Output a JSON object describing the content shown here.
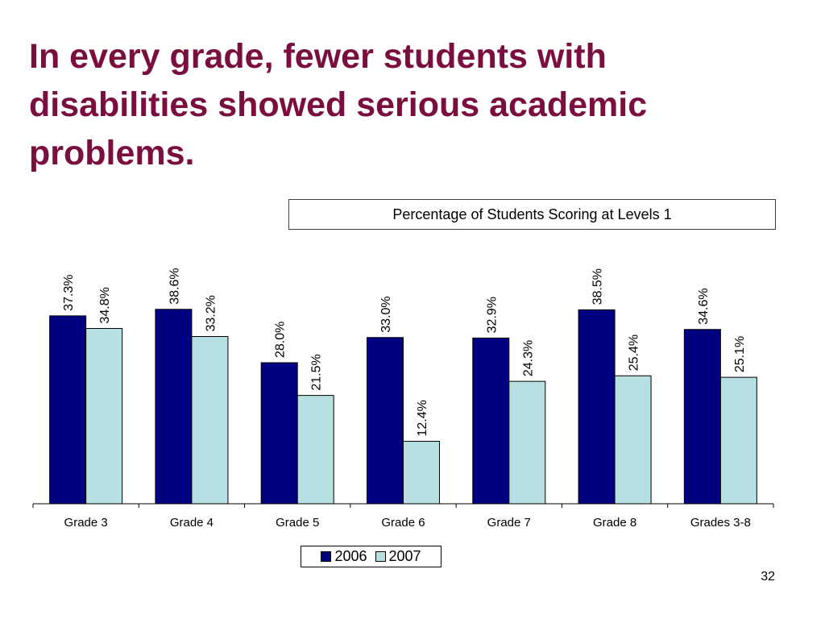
{
  "slide": {
    "title": "In every grade, fewer students with disabilities showed serious academic problems.",
    "page_number": "32"
  },
  "colors": {
    "title": "#7a0e3e",
    "series_2006": "#000080",
    "series_2007": "#b7e0e3"
  },
  "chart_data": {
    "type": "bar",
    "title": "Percentage of Students Scoring at Levels 1",
    "categories": [
      "Grade 3",
      "Grade 4",
      "Grade 5",
      "Grade 6",
      "Grade 7",
      "Grade 8",
      "Grades 3-8"
    ],
    "series": [
      {
        "name": "2006",
        "values": [
          37.3,
          38.6,
          28.0,
          33.0,
          32.9,
          38.5,
          34.6
        ],
        "labels": [
          "37.3%",
          "38.6%",
          "28.0%",
          "33.0%",
          "32.9%",
          "38.5%",
          "34.6%"
        ]
      },
      {
        "name": "2007",
        "values": [
          34.8,
          33.2,
          21.5,
          12.4,
          24.3,
          25.4,
          25.1
        ],
        "labels": [
          "34.8%",
          "33.2%",
          "21.5%",
          "12.4%",
          "24.3%",
          "25.4%",
          "25.1%"
        ]
      }
    ],
    "ylim": [
      0,
      50
    ],
    "grid": false,
    "legend_position": "bottom"
  }
}
